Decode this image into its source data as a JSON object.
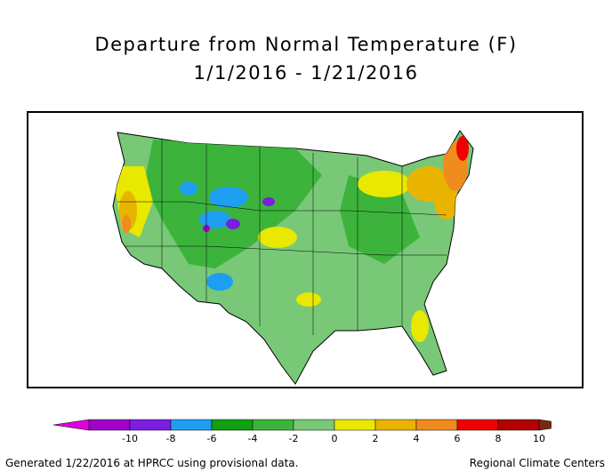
{
  "title": {
    "line1": "Departure from Normal Temperature (F)",
    "line2": "1/1/2016 - 1/21/2016"
  },
  "legend": {
    "ticks": [
      "-10",
      "-8",
      "-6",
      "-4",
      "-2",
      "0",
      "2",
      "4",
      "6",
      "8",
      "10"
    ],
    "colors": [
      "#e000e0",
      "#a000c8",
      "#7a1ee0",
      "#1e9ef0",
      "#10a010",
      "#3cb43c",
      "#78c878",
      "#e8e800",
      "#e8b400",
      "#f08c1e",
      "#f00000",
      "#b40000",
      "#782814"
    ]
  },
  "footer": {
    "left": "Generated 1/22/2016 at HPRCC using provisional data.",
    "right": "Regional Climate Centers"
  }
}
